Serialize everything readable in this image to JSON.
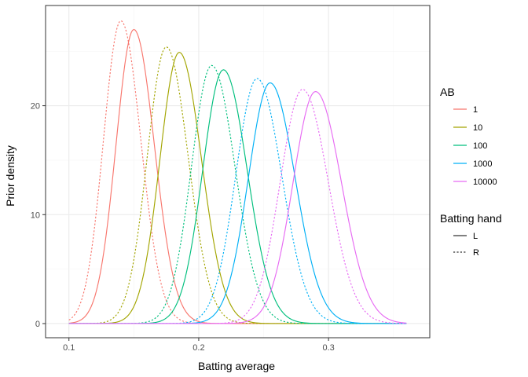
{
  "chart_data": {
    "type": "line",
    "xlabel": "Batting average",
    "ylabel": "Prior density",
    "xlim": [
      0.082,
      0.378
    ],
    "ylim": [
      -1.3,
      29.2
    ],
    "x_ticks": [
      0.1,
      0.2,
      0.3
    ],
    "x_tick_labels": [
      "0.1",
      "0.2",
      "0.3"
    ],
    "y_ticks": [
      0,
      10,
      20
    ],
    "y_tick_labels": [
      "0",
      "10",
      "20"
    ],
    "x_range": [
      0.1,
      0.36
    ],
    "grid": true,
    "theme": "bw",
    "legends": [
      {
        "title": "AB",
        "placement": "right",
        "key": "color",
        "entries": [
          {
            "label": "1",
            "color": "#F8766D"
          },
          {
            "label": "10",
            "color": "#A3A500"
          },
          {
            "label": "100",
            "color": "#00BF7D"
          },
          {
            "label": "1000",
            "color": "#00B0F6"
          },
          {
            "label": "10000",
            "color": "#E76BF3"
          }
        ]
      },
      {
        "title": "Batting hand",
        "placement": "right",
        "key": "linetype",
        "entries": [
          {
            "label": "L",
            "linetype": "solid"
          },
          {
            "label": "R",
            "linetype": "dashed"
          }
        ]
      }
    ],
    "series_shape": "beta-like density curve per series: peak location, peak height, and spread",
    "series": [
      {
        "ab": "1",
        "hand": "L",
        "color": "#F8766D",
        "dash": "solid",
        "peak_x": 0.15,
        "peak_y": 27.0,
        "sd": 0.0148
      },
      {
        "ab": "1",
        "hand": "R",
        "color": "#F8766D",
        "dash": "dashed",
        "peak_x": 0.14,
        "peak_y": 27.8,
        "sd": 0.0144
      },
      {
        "ab": "10",
        "hand": "L",
        "color": "#A3A500",
        "dash": "solid",
        "peak_x": 0.185,
        "peak_y": 24.9,
        "sd": 0.016
      },
      {
        "ab": "10",
        "hand": "R",
        "color": "#A3A500",
        "dash": "dashed",
        "peak_x": 0.175,
        "peak_y": 25.4,
        "sd": 0.0157
      },
      {
        "ab": "100",
        "hand": "L",
        "color": "#00BF7D",
        "dash": "solid",
        "peak_x": 0.219,
        "peak_y": 23.3,
        "sd": 0.0171
      },
      {
        "ab": "100",
        "hand": "R",
        "color": "#00BF7D",
        "dash": "dashed",
        "peak_x": 0.21,
        "peak_y": 23.7,
        "sd": 0.0168
      },
      {
        "ab": "1000",
        "hand": "L",
        "color": "#00B0F6",
        "dash": "solid",
        "peak_x": 0.255,
        "peak_y": 22.1,
        "sd": 0.018
      },
      {
        "ab": "1000",
        "hand": "R",
        "color": "#00B0F6",
        "dash": "dashed",
        "peak_x": 0.245,
        "peak_y": 22.5,
        "sd": 0.0177
      },
      {
        "ab": "10000",
        "hand": "L",
        "color": "#E76BF3",
        "dash": "solid",
        "peak_x": 0.29,
        "peak_y": 21.3,
        "sd": 0.0187
      },
      {
        "ab": "10000",
        "hand": "R",
        "color": "#E76BF3",
        "dash": "dashed",
        "peak_x": 0.28,
        "peak_y": 21.5,
        "sd": 0.0185
      }
    ]
  },
  "colors": {
    "panel_border": "#333333",
    "grid_major": "#ebebeb",
    "grid_minor": "#f5f5f5",
    "tick": "#333333",
    "tick_label": "#4d4d4d"
  }
}
